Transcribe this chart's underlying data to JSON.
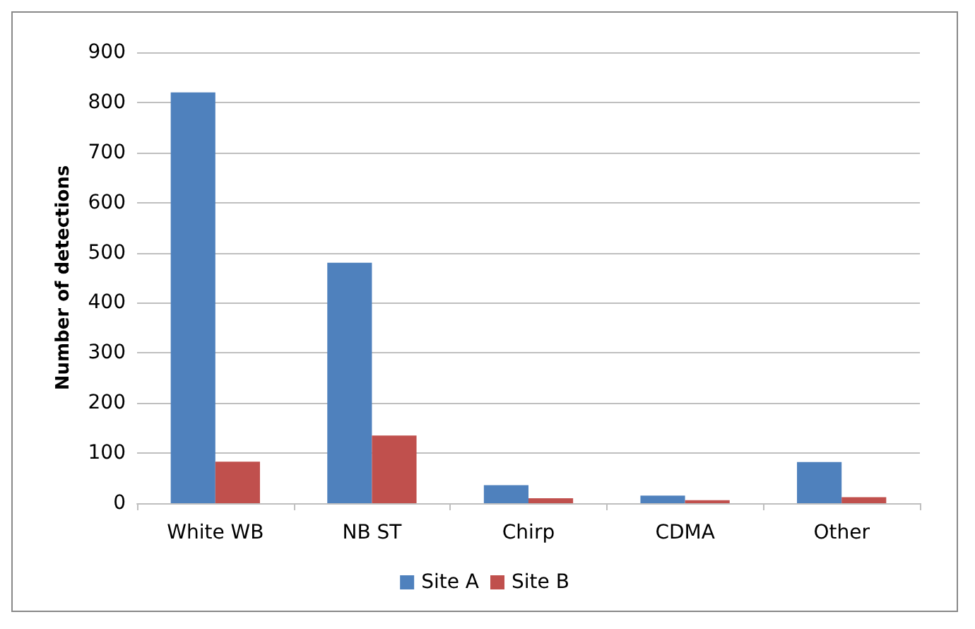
{
  "chart_data": {
    "type": "bar",
    "ylabel": "Number of detections",
    "categories": [
      "White WB",
      "NB ST",
      "Chirp",
      "CDMA",
      "Other"
    ],
    "series": [
      {
        "name": "Site A",
        "color": "#4f81bd",
        "values": [
          820,
          480,
          36,
          15,
          82
        ]
      },
      {
        "name": "Site B",
        "color": "#c0504d",
        "values": [
          83,
          135,
          10,
          6,
          12
        ]
      }
    ],
    "ylim": [
      0,
      900
    ],
    "yticks": [
      0,
      100,
      200,
      300,
      400,
      500,
      600,
      700,
      800,
      900
    ],
    "grid": "y",
    "legend": "bottom"
  }
}
